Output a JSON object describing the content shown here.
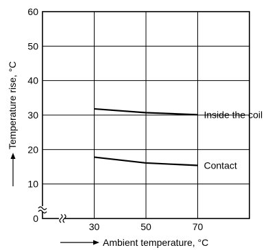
{
  "chart_data": {
    "type": "line",
    "xlabel": "Ambient temperature, °C",
    "ylabel": "Temperature rise, °C",
    "x_ticks": [
      30,
      50,
      70
    ],
    "y_ticks": [
      0,
      10,
      20,
      30,
      40,
      50,
      60
    ],
    "xlim": [
      10,
      90
    ],
    "ylim": [
      0,
      60
    ],
    "grid": true,
    "series": [
      {
        "name": "Inside the coil",
        "x": [
          30,
          50,
          70
        ],
        "values": [
          31.8,
          30.7,
          30.1
        ]
      },
      {
        "name": "Contact",
        "x": [
          30,
          50,
          70
        ],
        "values": [
          17.8,
          16.1,
          15.4
        ]
      }
    ],
    "colors": {
      "line": "#000000",
      "grid": "#000000"
    }
  }
}
